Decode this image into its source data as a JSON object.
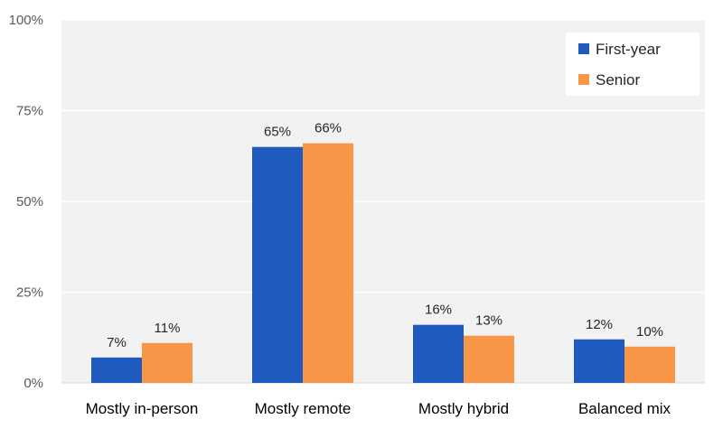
{
  "chart_data": {
    "type": "bar",
    "title": "",
    "xlabel": "",
    "ylabel": "",
    "categories": [
      "Mostly in-person",
      "Mostly remote",
      "Mostly hybrid",
      "Balanced mix"
    ],
    "series": [
      {
        "name": "First-year",
        "values": [
          7,
          65,
          16,
          12
        ],
        "color": "#1f5bbf"
      },
      {
        "name": "Senior",
        "values": [
          11,
          66,
          13,
          10
        ],
        "color": "#f79646"
      }
    ],
    "ylim": [
      0,
      100
    ],
    "yticks": [
      0,
      25,
      50,
      75,
      100
    ],
    "ytick_labels": [
      "0%",
      "25%",
      "50%",
      "75%",
      "100%"
    ],
    "value_suffix": "%",
    "grid": true,
    "legend_position": "top-right",
    "plot_background": "#f2f2f2",
    "grid_color": "#ffffff"
  }
}
